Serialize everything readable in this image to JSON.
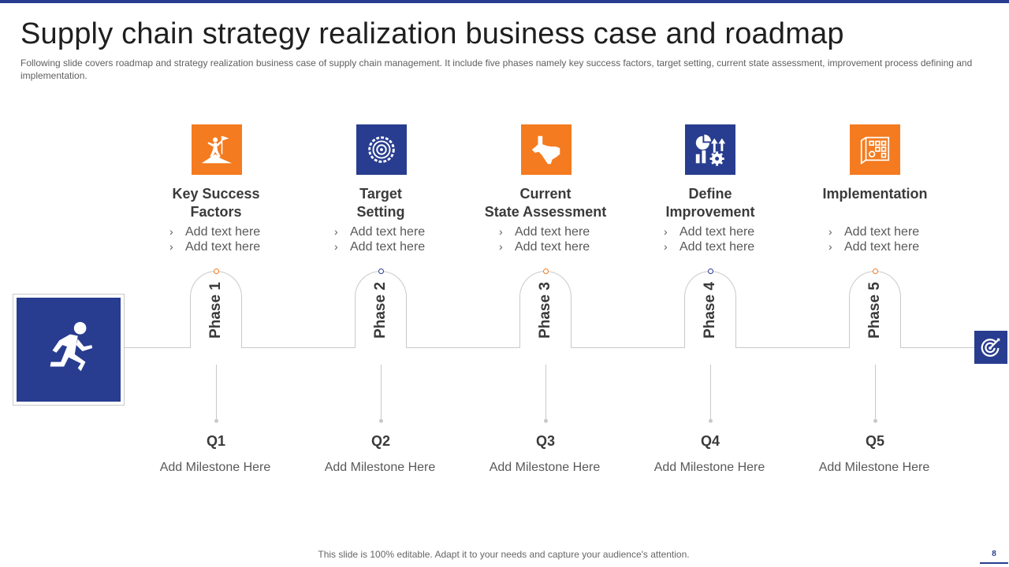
{
  "title": "Supply chain strategy realization business case and roadmap",
  "subtitle": "Following slide covers roadmap and strategy realization business case of supply chain management. It include five  phases namely key success factors, target setting, current state assessment, improvement process defining and implementation.",
  "colors": {
    "accent_blue": "#283d8f",
    "accent_orange": "#f47b20",
    "line_gray": "#c9c9c9"
  },
  "start_icon": "running-person-icon",
  "end_icon": "target-icon",
  "phases": [
    {
      "icon": "climber-flag-icon",
      "heading_line1": "Key Success",
      "heading_line2": "Factors",
      "bullets": [
        "Add text here",
        "Add text here"
      ],
      "phase_label": "Phase 1",
      "quarter": "Q1",
      "milestone": "Add Milestone Here"
    },
    {
      "icon": "target-gear-icon",
      "heading_line1": "Target",
      "heading_line2": "Setting",
      "bullets": [
        "Add text here",
        "Add text here"
      ],
      "phase_label": "Phase 2",
      "quarter": "Q2",
      "milestone": "Add Milestone Here"
    },
    {
      "icon": "texas-map-icon",
      "heading_line1": "Current",
      "heading_line2": "State Assessment",
      "bullets": [
        "Add text here",
        "Add text here"
      ],
      "phase_label": "Phase 3",
      "quarter": "Q3",
      "milestone": "Add Milestone Here"
    },
    {
      "icon": "chart-gear-icon",
      "heading_line1": "Define",
      "heading_line2": "Improvement",
      "bullets": [
        "Add text here",
        "Add text here"
      ],
      "phase_label": "Phase 4",
      "quarter": "Q4",
      "milestone": "Add Milestone Here"
    },
    {
      "icon": "blueprint-map-icon",
      "heading_line1": "Implementation",
      "heading_line2": "",
      "bullets": [
        "Add text here",
        "Add text here"
      ],
      "phase_label": "Phase 5",
      "quarter": "Q5",
      "milestone": "Add Milestone Here"
    }
  ],
  "footer": "This slide is 100% editable. Adapt it to your needs and capture your audience's attention.",
  "page_number": "8"
}
